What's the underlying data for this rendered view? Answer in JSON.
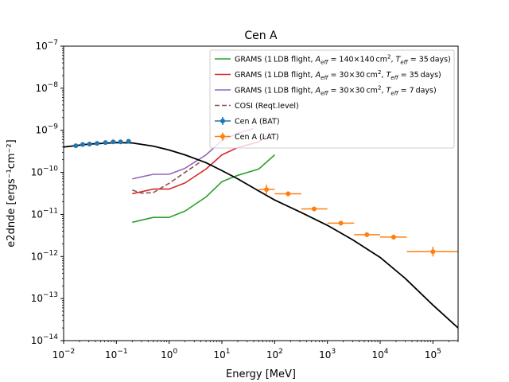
{
  "chart_data": {
    "type": "scatter",
    "title": "Cen A",
    "xlabel": "Energy [MeV]",
    "ylabel": "e2dnde [ergs⁻¹cm⁻²]",
    "xscale": "log",
    "yscale": "log",
    "xlim": [
      0.01,
      300000
    ],
    "ylim": [
      1e-14,
      1e-07
    ],
    "x_ticks": [
      {
        "base": "10",
        "exp": "−2",
        "value": 0.01
      },
      {
        "base": "10",
        "exp": "−1",
        "value": 0.1
      },
      {
        "base": "10",
        "exp": "0",
        "value": 1
      },
      {
        "base": "10",
        "exp": "1",
        "value": 10
      },
      {
        "base": "10",
        "exp": "2",
        "value": 100
      },
      {
        "base": "10",
        "exp": "3",
        "value": 1000
      },
      {
        "base": "10",
        "exp": "4",
        "value": 10000
      },
      {
        "base": "10",
        "exp": "5",
        "value": 100000
      }
    ],
    "y_ticks": [
      {
        "base": "10",
        "exp": "−14",
        "value": 1e-14
      },
      {
        "base": "10",
        "exp": "−13",
        "value": 1e-13
      },
      {
        "base": "10",
        "exp": "−12",
        "value": 1e-12
      },
      {
        "base": "10",
        "exp": "−11",
        "value": 1e-11
      },
      {
        "base": "10",
        "exp": "−10",
        "value": 1e-10
      },
      {
        "base": "10",
        "exp": "−9",
        "value": 1e-09
      },
      {
        "base": "10",
        "exp": "−8",
        "value": 1e-08
      },
      {
        "base": "10",
        "exp": "−7",
        "value": 1e-07
      }
    ],
    "legend_position": "top-right",
    "grid": false,
    "series": [
      {
        "name": "GRAMS (1 LDB flight, A_eff = 140×140 cm², T_eff = 35 days)",
        "legend_parts": [
          {
            "t": "GRAMS (1 LDB flight, "
          },
          {
            "t": "A",
            "i": true
          },
          {
            "t": "eff",
            "i": true,
            "sub": true
          },
          {
            "t": " = 140×140 cm"
          },
          {
            "t": "2",
            "sup": true
          },
          {
            "t": ", "
          },
          {
            "t": "T",
            "i": true
          },
          {
            "t": "eff",
            "i": true,
            "sub": true
          },
          {
            "t": " = 35 days)"
          }
        ],
        "kind": "line",
        "color": "#2ca02c",
        "dash": "",
        "x": [
          0.2,
          0.5,
          1,
          2,
          5,
          10,
          20,
          50,
          100
        ],
        "y": [
          6.5e-12,
          8.5e-12,
          8.5e-12,
          1.2e-11,
          2.6e-11,
          6e-11,
          8.5e-11,
          1.2e-10,
          2.6e-10
        ]
      },
      {
        "name": "GRAMS (1 LDB flight, A_eff = 30×30 cm², T_eff = 35 days)",
        "legend_parts": [
          {
            "t": "GRAMS (1 LDB flight, "
          },
          {
            "t": "A",
            "i": true
          },
          {
            "t": "eff",
            "i": true,
            "sub": true
          },
          {
            "t": " = 30×30 cm"
          },
          {
            "t": "2",
            "sup": true
          },
          {
            "t": ", "
          },
          {
            "t": "T",
            "i": true
          },
          {
            "t": "eff",
            "i": true,
            "sub": true
          },
          {
            "t": " = 35 days)"
          }
        ],
        "kind": "line",
        "color": "#d62728",
        "dash": "",
        "x": [
          0.2,
          0.5,
          1,
          2,
          5,
          10,
          20,
          50,
          70
        ],
        "y": [
          3.1e-11,
          4e-11,
          4e-11,
          5.6e-11,
          1.2e-10,
          2.6e-10,
          3.9e-10,
          5.3e-10,
          7.5e-10
        ]
      },
      {
        "name": "GRAMS (1 LDB flight, A_eff = 30×30 cm², T_eff = 7 days)",
        "legend_parts": [
          {
            "t": "GRAMS (1 LDB flight, "
          },
          {
            "t": "A",
            "i": true
          },
          {
            "t": "eff",
            "i": true,
            "sub": true
          },
          {
            "t": " = 30×30 cm"
          },
          {
            "t": "2",
            "sup": true
          },
          {
            "t": ", "
          },
          {
            "t": "T",
            "i": true
          },
          {
            "t": "eff",
            "i": true,
            "sub": true
          },
          {
            "t": " = 7 days)"
          }
        ],
        "kind": "line",
        "color": "#9467bd",
        "dash": "",
        "x": [
          0.2,
          0.5,
          1,
          2,
          5,
          10,
          20,
          40
        ],
        "y": [
          7e-11,
          9e-11,
          9e-11,
          1.25e-10,
          2.6e-10,
          5.7e-10,
          8.5e-10,
          1.1e-09
        ]
      },
      {
        "name": "COSI (Reqt.level)",
        "legend_parts": [
          {
            "t": "COSI (Reqt.level)"
          }
        ],
        "kind": "line",
        "color": "#8c564b",
        "dash": "6,3",
        "x": [
          0.2,
          0.3,
          0.5,
          1,
          2,
          4
        ],
        "y": [
          3.8e-11,
          3.2e-11,
          3.3e-11,
          5.5e-11,
          1e-10,
          1.8e-10
        ]
      },
      {
        "name": "Cen A (BAT)",
        "legend_parts": [
          {
            "t": "Cen A (BAT)"
          }
        ],
        "kind": "errorbar",
        "color": "#1f77b4",
        "points": [
          {
            "x": 0.017,
            "y": 4.3e-10
          },
          {
            "x": 0.023,
            "y": 4.6e-10
          },
          {
            "x": 0.031,
            "y": 4.7e-10
          },
          {
            "x": 0.043,
            "y": 4.9e-10
          },
          {
            "x": 0.062,
            "y": 5.1e-10
          },
          {
            "x": 0.087,
            "y": 5.3e-10
          },
          {
            "x": 0.12,
            "y": 5.3e-10
          },
          {
            "x": 0.17,
            "y": 5.5e-10
          }
        ]
      },
      {
        "name": "Cen A (LAT)",
        "legend_parts": [
          {
            "t": "Cen A (LAT)"
          }
        ],
        "kind": "errorbar",
        "color": "#ff7f0e",
        "points": [
          {
            "x": 70,
            "y": 3.9e-11,
            "xlo": 50,
            "xhi": 100,
            "ylo": 2.9e-11,
            "yhi": 5.1e-11
          },
          {
            "x": 180,
            "y": 3.1e-11,
            "xlo": 100,
            "xhi": 320,
            "ylo": 2.7e-11,
            "yhi": 3.5e-11
          },
          {
            "x": 560,
            "y": 1.35e-11,
            "xlo": 320,
            "xhi": 1000,
            "ylo": 1.2e-11,
            "yhi": 1.5e-11
          },
          {
            "x": 1800,
            "y": 6.2e-12,
            "xlo": 1000,
            "xhi": 3200,
            "ylo": 5.5e-12,
            "yhi": 7e-12
          },
          {
            "x": 5600,
            "y": 3.3e-12,
            "xlo": 3200,
            "xhi": 10000,
            "ylo": 2.9e-12,
            "yhi": 3.7e-12
          },
          {
            "x": 18000,
            "y": 2.9e-12,
            "xlo": 10000,
            "xhi": 32000,
            "ylo": 2.5e-12,
            "yhi": 3.3e-12
          },
          {
            "x": 100000,
            "y": 1.3e-12,
            "xlo": 32000,
            "xhi": 316000,
            "ylo": 1e-12,
            "yhi": 1.7e-12
          }
        ]
      },
      {
        "name": "",
        "legend_parts": [],
        "kind": "line",
        "color": "#000000",
        "dash": "",
        "x": [
          0.01,
          0.03,
          0.1,
          0.2,
          0.5,
          1,
          2,
          5,
          10,
          20,
          50,
          100,
          300,
          1000,
          3000,
          10000,
          30000,
          100000,
          300000
        ],
        "y": [
          4e-10,
          4.7e-10,
          5.1e-10,
          5e-10,
          4.2e-10,
          3.4e-10,
          2.6e-10,
          1.7e-10,
          1.1e-10,
          7e-11,
          3.6e-11,
          2.2e-11,
          1.15e-11,
          5.5e-12,
          2.5e-12,
          9.5e-13,
          3e-13,
          7e-14,
          2e-14
        ]
      }
    ]
  }
}
